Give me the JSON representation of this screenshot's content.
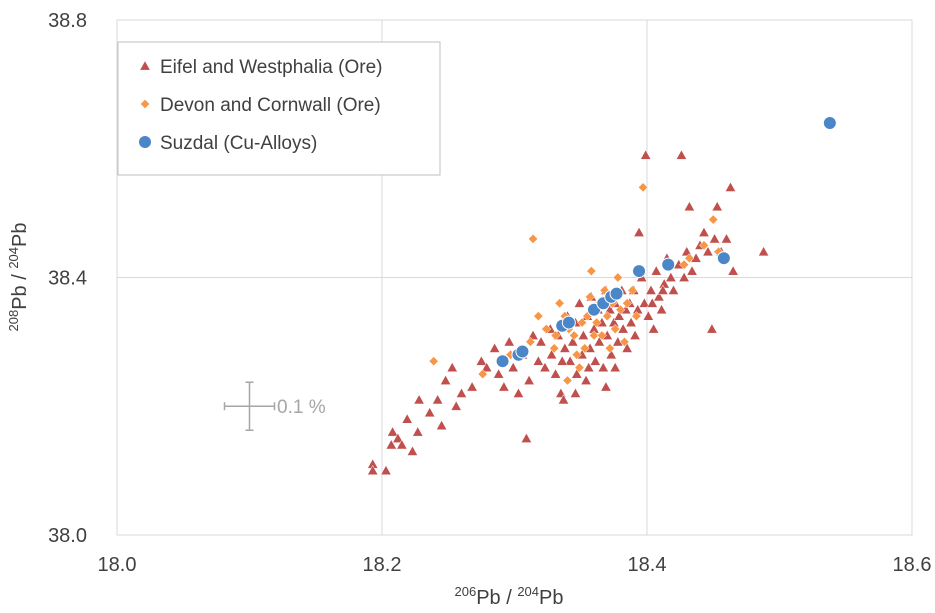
{
  "chart_data": {
    "type": "scatter",
    "xlabel": "206Pb / 204Pb",
    "ylabel": "208Pb / 204Pb",
    "xlim": [
      18.0,
      18.6
    ],
    "ylim": [
      38.0,
      38.8
    ],
    "xticks": [
      "18.0",
      "18.2",
      "18.4",
      "18.6"
    ],
    "yticks": [
      "38.0",
      "38.4",
      "38.8"
    ],
    "grid": true,
    "legend_position": "top-left",
    "error_bar_label": "0.1 %",
    "error_bar_center": [
      18.1,
      38.2
    ],
    "colors": {
      "Eifel and Westphalia (Ore)": "#c0504d",
      "Devon and Cornwall (Ore)": "#f79646",
      "Suzdal (Cu-Alloys)": "#4a86c8"
    },
    "series": [
      {
        "name": "Eifel and Westphalia (Ore)",
        "marker": "triangle",
        "points": [
          [
            18.193,
            38.11
          ],
          [
            18.193,
            38.1
          ],
          [
            18.203,
            38.1
          ],
          [
            18.208,
            38.16
          ],
          [
            18.207,
            38.14
          ],
          [
            18.212,
            38.15
          ],
          [
            18.215,
            38.14
          ],
          [
            18.219,
            38.18
          ],
          [
            18.223,
            38.13
          ],
          [
            18.227,
            38.16
          ],
          [
            18.228,
            38.21
          ],
          [
            18.236,
            38.19
          ],
          [
            18.242,
            38.21
          ],
          [
            18.245,
            38.17
          ],
          [
            18.248,
            38.24
          ],
          [
            18.253,
            38.26
          ],
          [
            18.256,
            38.2
          ],
          [
            18.26,
            38.22
          ],
          [
            18.268,
            38.23
          ],
          [
            18.275,
            38.27
          ],
          [
            18.279,
            38.26
          ],
          [
            18.285,
            38.29
          ],
          [
            18.288,
            38.25
          ],
          [
            18.292,
            38.23
          ],
          [
            18.296,
            38.3
          ],
          [
            18.299,
            38.26
          ],
          [
            18.303,
            38.22
          ],
          [
            18.306,
            38.28
          ],
          [
            18.309,
            38.15
          ],
          [
            18.311,
            38.24
          ],
          [
            18.314,
            38.31
          ],
          [
            18.318,
            38.27
          ],
          [
            18.32,
            38.3
          ],
          [
            18.323,
            38.26
          ],
          [
            18.327,
            38.32
          ],
          [
            18.328,
            38.28
          ],
          [
            18.331,
            38.25
          ],
          [
            18.333,
            38.31
          ],
          [
            18.335,
            38.22
          ],
          [
            18.337,
            38.21
          ],
          [
            18.338,
            38.29
          ],
          [
            18.34,
            38.34
          ],
          [
            18.342,
            38.27
          ],
          [
            18.344,
            38.3
          ],
          [
            18.346,
            38.33
          ],
          [
            18.347,
            38.25
          ],
          [
            18.349,
            38.36
          ],
          [
            18.351,
            38.28
          ],
          [
            18.352,
            38.31
          ],
          [
            18.354,
            38.24
          ],
          [
            18.355,
            38.34
          ],
          [
            18.357,
            38.29
          ],
          [
            18.358,
            38.37
          ],
          [
            18.36,
            38.32
          ],
          [
            18.361,
            38.27
          ],
          [
            18.363,
            38.35
          ],
          [
            18.364,
            38.3
          ],
          [
            18.366,
            38.33
          ],
          [
            18.367,
            38.26
          ],
          [
            18.369,
            38.38
          ],
          [
            18.37,
            38.31
          ],
          [
            18.372,
            38.35
          ],
          [
            18.373,
            38.28
          ],
          [
            18.375,
            38.33
          ],
          [
            18.376,
            38.36
          ],
          [
            18.378,
            38.3
          ],
          [
            18.379,
            38.34
          ],
          [
            18.381,
            38.38
          ],
          [
            18.382,
            38.32
          ],
          [
            18.384,
            38.35
          ],
          [
            18.385,
            38.29
          ],
          [
            18.387,
            38.36
          ],
          [
            18.388,
            38.33
          ],
          [
            18.39,
            38.38
          ],
          [
            18.391,
            38.31
          ],
          [
            18.393,
            38.35
          ],
          [
            18.394,
            38.47
          ],
          [
            18.396,
            38.4
          ],
          [
            18.398,
            38.36
          ],
          [
            18.399,
            38.59
          ],
          [
            18.401,
            38.34
          ],
          [
            18.403,
            38.38
          ],
          [
            18.405,
            38.32
          ],
          [
            18.407,
            38.41
          ],
          [
            18.409,
            38.37
          ],
          [
            18.411,
            38.35
          ],
          [
            18.413,
            38.39
          ],
          [
            18.415,
            38.43
          ],
          [
            18.418,
            38.4
          ],
          [
            18.42,
            38.38
          ],
          [
            18.424,
            38.42
          ],
          [
            18.426,
            38.59
          ],
          [
            18.428,
            38.4
          ],
          [
            18.43,
            38.44
          ],
          [
            18.432,
            38.51
          ],
          [
            18.434,
            38.41
          ],
          [
            18.437,
            38.43
          ],
          [
            18.44,
            38.45
          ],
          [
            18.443,
            38.47
          ],
          [
            18.446,
            38.44
          ],
          [
            18.449,
            38.32
          ],
          [
            18.451,
            38.46
          ],
          [
            18.453,
            38.51
          ],
          [
            18.456,
            38.44
          ],
          [
            18.46,
            38.46
          ],
          [
            18.463,
            38.54
          ],
          [
            18.465,
            38.41
          ],
          [
            18.488,
            38.44
          ],
          [
            18.369,
            38.23
          ],
          [
            18.376,
            38.26
          ],
          [
            18.356,
            38.26
          ],
          [
            18.346,
            38.22
          ],
          [
            18.336,
            38.27
          ],
          [
            18.404,
            38.36
          ],
          [
            18.412,
            38.38
          ]
        ]
      },
      {
        "name": "Devon and Cornwall (Ore)",
        "marker": "diamond",
        "points": [
          [
            18.239,
            38.27
          ],
          [
            18.276,
            38.25
          ],
          [
            18.297,
            38.28
          ],
          [
            18.312,
            38.3
          ],
          [
            18.314,
            38.46
          ],
          [
            18.318,
            38.34
          ],
          [
            18.324,
            38.32
          ],
          [
            18.331,
            38.31
          ],
          [
            18.334,
            38.36
          ],
          [
            18.338,
            38.34
          ],
          [
            18.341,
            38.32
          ],
          [
            18.345,
            38.31
          ],
          [
            18.349,
            38.26
          ],
          [
            18.351,
            38.33
          ],
          [
            18.353,
            38.29
          ],
          [
            18.355,
            38.34
          ],
          [
            18.357,
            38.37
          ],
          [
            18.358,
            38.41
          ],
          [
            18.36,
            38.31
          ],
          [
            18.362,
            38.33
          ],
          [
            18.364,
            38.36
          ],
          [
            18.366,
            38.31
          ],
          [
            18.368,
            38.38
          ],
          [
            18.37,
            38.34
          ],
          [
            18.372,
            38.29
          ],
          [
            18.374,
            38.36
          ],
          [
            18.376,
            38.32
          ],
          [
            18.378,
            38.4
          ],
          [
            18.38,
            38.35
          ],
          [
            18.383,
            38.3
          ],
          [
            18.385,
            38.36
          ],
          [
            18.389,
            38.38
          ],
          [
            18.392,
            38.34
          ],
          [
            18.397,
            38.54
          ],
          [
            18.428,
            38.42
          ],
          [
            18.432,
            38.43
          ],
          [
            18.443,
            38.45
          ],
          [
            18.45,
            38.49
          ],
          [
            18.454,
            38.44
          ],
          [
            18.347,
            38.28
          ],
          [
            18.34,
            38.24
          ],
          [
            18.33,
            38.29
          ]
        ]
      },
      {
        "name": "Suzdal (Cu-Alloys)",
        "marker": "circle",
        "points": [
          [
            18.291,
            38.27
          ],
          [
            18.303,
            38.28
          ],
          [
            18.306,
            38.285
          ],
          [
            18.336,
            38.325
          ],
          [
            18.341,
            38.33
          ],
          [
            18.36,
            38.35
          ],
          [
            18.367,
            38.36
          ],
          [
            18.373,
            38.37
          ],
          [
            18.377,
            38.375
          ],
          [
            18.394,
            38.41
          ],
          [
            18.416,
            38.42
          ],
          [
            18.458,
            38.43
          ],
          [
            18.538,
            38.64
          ]
        ]
      }
    ]
  }
}
